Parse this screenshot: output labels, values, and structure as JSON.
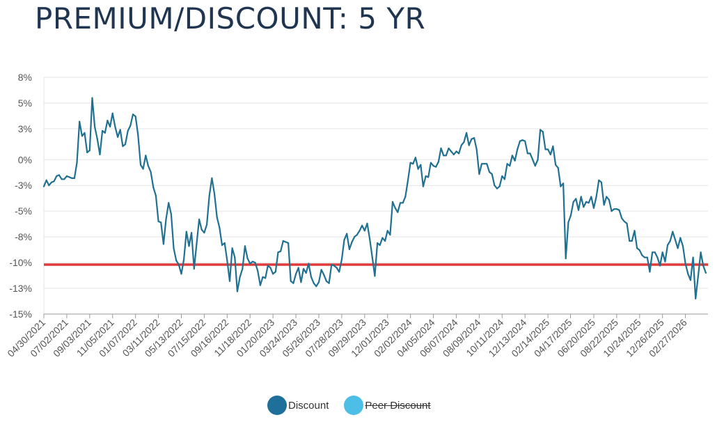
{
  "page": {
    "title": "PREMIUM/DISCOUNT: 5 YR"
  },
  "chart_data": {
    "type": "line",
    "title": "PREMIUM/DISCOUNT: 5 YR",
    "xlabel": "",
    "ylabel": "",
    "y_unit": "%",
    "ylim": [
      -15,
      8
    ],
    "y_ticks": [
      {
        "value": 8,
        "label": "8%"
      },
      {
        "value": 5.5,
        "label": "5%"
      },
      {
        "value": 3,
        "label": "3%"
      },
      {
        "value": 0,
        "label": "0%"
      },
      {
        "value": -2.5,
        "label": "-3%"
      },
      {
        "value": -5,
        "label": "-5%"
      },
      {
        "value": -7.5,
        "label": "-8%"
      },
      {
        "value": -10,
        "label": "-10%"
      },
      {
        "value": -12.5,
        "label": "-13%"
      },
      {
        "value": -15,
        "label": "-15%"
      }
    ],
    "x_range": [
      "2021-04-30",
      "2026-04-30"
    ],
    "x_tick_labels": [
      "04/30/2021",
      "07/02/2021",
      "09/03/2021",
      "11/05/2021",
      "01/07/2022",
      "03/11/2022",
      "05/13/2022",
      "07/15/2022",
      "09/16/2022",
      "11/18/2022",
      "01/20/2023",
      "03/24/2023",
      "05/26/2023",
      "07/28/2023",
      "09/29/2023",
      "12/01/2023",
      "02/02/2024",
      "04/05/2024",
      "06/07/2024",
      "08/09/2024",
      "10/11/2024",
      "12/13/2024",
      "02/14/2025",
      "04/17/2025",
      "06/20/2025",
      "08/22/2025",
      "10/24/2025",
      "12/26/2025",
      "02/27/2026"
    ],
    "grid": true,
    "legend_position": "bottom",
    "reference_line": {
      "value": -10.2,
      "color": "#e03a3a"
    },
    "series": [
      {
        "name": "Discount",
        "color": "#1f7091",
        "legend_color": "#1f6f9b",
        "visible": true,
        "points": [
          [
            "2021-04-30",
            -2.6
          ],
          [
            "2021-05-07",
            -2.0
          ],
          [
            "2021-05-14",
            -2.5
          ],
          [
            "2021-05-21",
            -2.2
          ],
          [
            "2021-05-28",
            -2.1
          ],
          [
            "2021-06-04",
            -1.6
          ],
          [
            "2021-06-11",
            -1.5
          ],
          [
            "2021-06-18",
            -1.9
          ],
          [
            "2021-06-25",
            -1.9
          ],
          [
            "2021-07-02",
            -1.6
          ],
          [
            "2021-07-09",
            -1.7
          ],
          [
            "2021-07-16",
            -1.8
          ],
          [
            "2021-07-23",
            -1.8
          ],
          [
            "2021-07-30",
            -0.3
          ],
          [
            "2021-08-06",
            3.7
          ],
          [
            "2021-08-13",
            2.3
          ],
          [
            "2021-08-20",
            2.6
          ],
          [
            "2021-08-27",
            0.7
          ],
          [
            "2021-09-03",
            0.9
          ],
          [
            "2021-09-10",
            6.0
          ],
          [
            "2021-09-17",
            3.2
          ],
          [
            "2021-09-24",
            2.0
          ],
          [
            "2021-10-01",
            0.5
          ],
          [
            "2021-10-08",
            2.8
          ],
          [
            "2021-10-15",
            2.6
          ],
          [
            "2021-10-22",
            3.8
          ],
          [
            "2021-10-29",
            3.2
          ],
          [
            "2021-11-05",
            4.5
          ],
          [
            "2021-11-12",
            3.2
          ],
          [
            "2021-11-19",
            2.2
          ],
          [
            "2021-11-26",
            2.9
          ],
          [
            "2021-12-03",
            1.3
          ],
          [
            "2021-12-10",
            1.5
          ],
          [
            "2021-12-17",
            2.8
          ],
          [
            "2021-12-24",
            3.3
          ],
          [
            "2021-12-31",
            4.4
          ],
          [
            "2022-01-07",
            4.2
          ],
          [
            "2022-01-14",
            2.4
          ],
          [
            "2022-01-21",
            -0.5
          ],
          [
            "2022-01-28",
            -0.9
          ],
          [
            "2022-02-04",
            0.4
          ],
          [
            "2022-02-11",
            -0.6
          ],
          [
            "2022-02-18",
            -1.2
          ],
          [
            "2022-02-25",
            -2.7
          ],
          [
            "2022-03-04",
            -3.5
          ],
          [
            "2022-03-11",
            -6.0
          ],
          [
            "2022-03-18",
            -6.1
          ],
          [
            "2022-03-25",
            -8.2
          ],
          [
            "2022-04-01",
            -5.8
          ],
          [
            "2022-04-08",
            -4.2
          ],
          [
            "2022-04-15",
            -5.3
          ],
          [
            "2022-04-22",
            -8.6
          ],
          [
            "2022-04-29",
            -9.8
          ],
          [
            "2022-05-06",
            -10.2
          ],
          [
            "2022-05-13",
            -11.1
          ],
          [
            "2022-05-20",
            -9.7
          ],
          [
            "2022-05-27",
            -7.0
          ],
          [
            "2022-06-03",
            -8.4
          ],
          [
            "2022-06-10",
            -7.1
          ],
          [
            "2022-06-17",
            -10.6
          ],
          [
            "2022-06-24",
            -8.2
          ],
          [
            "2022-07-01",
            -5.8
          ],
          [
            "2022-07-08",
            -6.8
          ],
          [
            "2022-07-15",
            -7.1
          ],
          [
            "2022-07-22",
            -6.3
          ],
          [
            "2022-07-29",
            -3.5
          ],
          [
            "2022-08-05",
            -1.8
          ],
          [
            "2022-08-12",
            -3.3
          ],
          [
            "2022-08-19",
            -5.6
          ],
          [
            "2022-08-26",
            -6.6
          ],
          [
            "2022-09-02",
            -8.3
          ],
          [
            "2022-09-09",
            -8.1
          ],
          [
            "2022-09-16",
            -9.8
          ],
          [
            "2022-09-23",
            -11.8
          ],
          [
            "2022-09-30",
            -8.6
          ],
          [
            "2022-10-07",
            -9.5
          ],
          [
            "2022-10-14",
            -12.8
          ],
          [
            "2022-10-21",
            -11.4
          ],
          [
            "2022-10-28",
            -10.6
          ],
          [
            "2022-11-04",
            -8.4
          ],
          [
            "2022-11-11",
            -9.6
          ],
          [
            "2022-11-18",
            -10.1
          ],
          [
            "2022-11-25",
            -9.9
          ],
          [
            "2022-12-02",
            -10.0
          ],
          [
            "2022-12-09",
            -10.8
          ],
          [
            "2022-12-16",
            -12.2
          ],
          [
            "2022-12-23",
            -11.4
          ],
          [
            "2022-12-30",
            -11.5
          ],
          [
            "2023-01-06",
            -10.3
          ],
          [
            "2023-01-13",
            -10.5
          ],
          [
            "2023-01-20",
            -11.1
          ],
          [
            "2023-01-27",
            -10.9
          ],
          [
            "2023-02-03",
            -9.0
          ],
          [
            "2023-02-10",
            -8.9
          ],
          [
            "2023-02-17",
            -7.9
          ],
          [
            "2023-02-24",
            -8.0
          ],
          [
            "2023-03-03",
            -8.1
          ],
          [
            "2023-03-10",
            -11.8
          ],
          [
            "2023-03-17",
            -12.0
          ],
          [
            "2023-03-24",
            -11.1
          ],
          [
            "2023-03-31",
            -10.5
          ],
          [
            "2023-04-07",
            -11.9
          ],
          [
            "2023-04-14",
            -10.6
          ],
          [
            "2023-04-21",
            -11.0
          ],
          [
            "2023-04-28",
            -10.1
          ],
          [
            "2023-05-05",
            -11.4
          ],
          [
            "2023-05-12",
            -12.0
          ],
          [
            "2023-05-19",
            -12.3
          ],
          [
            "2023-05-26",
            -11.9
          ],
          [
            "2023-06-02",
            -10.7
          ],
          [
            "2023-06-09",
            -11.2
          ],
          [
            "2023-06-16",
            -11.8
          ],
          [
            "2023-06-23",
            -12.0
          ],
          [
            "2023-06-30",
            -10.2
          ],
          [
            "2023-07-07",
            -10.3
          ],
          [
            "2023-07-14",
            -10.5
          ],
          [
            "2023-07-21",
            -10.9
          ],
          [
            "2023-07-28",
            -9.7
          ],
          [
            "2023-08-04",
            -7.8
          ],
          [
            "2023-08-11",
            -7.2
          ],
          [
            "2023-08-18",
            -8.7
          ],
          [
            "2023-08-25",
            -8.0
          ],
          [
            "2023-09-01",
            -7.5
          ],
          [
            "2023-09-08",
            -7.3
          ],
          [
            "2023-09-15",
            -6.9
          ],
          [
            "2023-09-22",
            -6.4
          ],
          [
            "2023-09-29",
            -6.9
          ],
          [
            "2023-10-06",
            -6.2
          ],
          [
            "2023-10-13",
            -7.7
          ],
          [
            "2023-10-20",
            -9.5
          ],
          [
            "2023-10-27",
            -11.3
          ],
          [
            "2023-11-03",
            -8.1
          ],
          [
            "2023-11-10",
            -8.3
          ],
          [
            "2023-11-17",
            -7.6
          ],
          [
            "2023-11-24",
            -7.9
          ],
          [
            "2023-12-01",
            -6.9
          ],
          [
            "2023-12-08",
            -7.3
          ],
          [
            "2023-12-15",
            -4.1
          ],
          [
            "2023-12-22",
            -4.7
          ],
          [
            "2023-12-29",
            -5.1
          ],
          [
            "2024-01-05",
            -4.2
          ],
          [
            "2024-01-12",
            -4.2
          ],
          [
            "2024-01-19",
            -3.6
          ],
          [
            "2024-01-26",
            -2.0
          ],
          [
            "2024-02-02",
            -0.3
          ],
          [
            "2024-02-09",
            -0.4
          ],
          [
            "2024-02-16",
            0.2
          ],
          [
            "2024-02-23",
            -0.9
          ],
          [
            "2024-03-01",
            -0.5
          ],
          [
            "2024-03-08",
            -2.6
          ],
          [
            "2024-03-15",
            -1.6
          ],
          [
            "2024-03-22",
            -1.7
          ],
          [
            "2024-03-29",
            -0.3
          ],
          [
            "2024-04-05",
            -0.6
          ],
          [
            "2024-04-12",
            -0.7
          ],
          [
            "2024-04-19",
            -0.2
          ],
          [
            "2024-04-26",
            1.1
          ],
          [
            "2024-05-03",
            0.4
          ],
          [
            "2024-05-10",
            0.4
          ],
          [
            "2024-05-17",
            1.1
          ],
          [
            "2024-05-24",
            0.8
          ],
          [
            "2024-05-31",
            0.5
          ],
          [
            "2024-06-07",
            0.8
          ],
          [
            "2024-06-14",
            0.6
          ],
          [
            "2024-06-21",
            1.4
          ],
          [
            "2024-06-28",
            1.7
          ],
          [
            "2024-07-05",
            2.6
          ],
          [
            "2024-07-12",
            1.4
          ],
          [
            "2024-07-19",
            2.0
          ],
          [
            "2024-07-26",
            2.1
          ],
          [
            "2024-08-02",
            1.0
          ],
          [
            "2024-08-09",
            -1.4
          ],
          [
            "2024-08-16",
            -0.4
          ],
          [
            "2024-08-23",
            -0.4
          ],
          [
            "2024-08-30",
            -0.4
          ],
          [
            "2024-09-06",
            -1.2
          ],
          [
            "2024-09-13",
            -1.4
          ],
          [
            "2024-09-20",
            -2.5
          ],
          [
            "2024-09-27",
            -2.8
          ],
          [
            "2024-10-04",
            -2.6
          ],
          [
            "2024-10-11",
            -1.6
          ],
          [
            "2024-10-18",
            -1.9
          ],
          [
            "2024-10-25",
            -0.4
          ],
          [
            "2024-11-01",
            -0.6
          ],
          [
            "2024-11-08",
            0.4
          ],
          [
            "2024-11-15",
            -0.1
          ],
          [
            "2024-11-22",
            1.0
          ],
          [
            "2024-11-29",
            1.8
          ],
          [
            "2024-12-06",
            1.9
          ],
          [
            "2024-12-13",
            1.8
          ],
          [
            "2024-12-20",
            0.6
          ],
          [
            "2024-12-27",
            0.6
          ],
          [
            "2025-01-03",
            0.0
          ],
          [
            "2025-01-10",
            -0.6
          ],
          [
            "2025-01-17",
            0.0
          ],
          [
            "2025-01-24",
            2.9
          ],
          [
            "2025-01-31",
            2.7
          ],
          [
            "2025-02-07",
            1.0
          ],
          [
            "2025-02-14",
            1.0
          ],
          [
            "2025-02-21",
            0.5
          ],
          [
            "2025-02-28",
            1.3
          ],
          [
            "2025-03-07",
            -0.5
          ],
          [
            "2025-03-14",
            -0.8
          ],
          [
            "2025-03-21",
            -2.6
          ],
          [
            "2025-03-28",
            -2.3
          ],
          [
            "2025-04-04",
            -9.6
          ],
          [
            "2025-04-11",
            -6.1
          ],
          [
            "2025-04-18",
            -5.4
          ],
          [
            "2025-04-25",
            -4.1
          ],
          [
            "2025-05-02",
            -3.8
          ],
          [
            "2025-05-09",
            -4.9
          ],
          [
            "2025-05-16",
            -3.6
          ],
          [
            "2025-05-23",
            -4.6
          ],
          [
            "2025-05-30",
            -4.1
          ],
          [
            "2025-06-06",
            -4.2
          ],
          [
            "2025-06-13",
            -3.6
          ],
          [
            "2025-06-20",
            -4.7
          ],
          [
            "2025-06-27",
            -3.6
          ],
          [
            "2025-07-04",
            -2.0
          ],
          [
            "2025-07-11",
            -2.2
          ],
          [
            "2025-07-18",
            -4.4
          ],
          [
            "2025-07-25",
            -3.6
          ],
          [
            "2025-08-01",
            -3.9
          ],
          [
            "2025-08-08",
            -5.0
          ],
          [
            "2025-08-15",
            -4.8
          ],
          [
            "2025-08-22",
            -4.8
          ],
          [
            "2025-08-29",
            -4.9
          ],
          [
            "2025-09-05",
            -5.7
          ],
          [
            "2025-09-12",
            -6.0
          ],
          [
            "2025-09-19",
            -6.2
          ],
          [
            "2025-09-26",
            -7.9
          ],
          [
            "2025-10-03",
            -7.9
          ],
          [
            "2025-10-10",
            -6.9
          ],
          [
            "2025-10-17",
            -8.6
          ],
          [
            "2025-10-24",
            -8.8
          ],
          [
            "2025-10-31",
            -9.3
          ],
          [
            "2025-11-07",
            -9.5
          ],
          [
            "2025-11-14",
            -9.5
          ],
          [
            "2025-11-21",
            -10.9
          ],
          [
            "2025-11-28",
            -9.0
          ],
          [
            "2025-12-05",
            -9.0
          ],
          [
            "2025-12-12",
            -9.5
          ],
          [
            "2025-12-19",
            -10.3
          ],
          [
            "2025-12-26",
            -9.0
          ],
          [
            "2026-01-02",
            -9.9
          ],
          [
            "2026-01-09",
            -8.3
          ],
          [
            "2026-01-16",
            -7.9
          ],
          [
            "2026-01-23",
            -7.0
          ],
          [
            "2026-01-30",
            -7.8
          ],
          [
            "2026-02-06",
            -8.6
          ],
          [
            "2026-02-13",
            -7.6
          ],
          [
            "2026-02-20",
            -8.4
          ],
          [
            "2026-02-27",
            -10.1
          ],
          [
            "2026-03-06",
            -11.1
          ],
          [
            "2026-03-13",
            -11.7
          ],
          [
            "2026-03-20",
            -9.5
          ],
          [
            "2026-03-27",
            -13.5
          ],
          [
            "2026-04-03",
            -11.3
          ],
          [
            "2026-04-10",
            -9.0
          ],
          [
            "2026-04-17",
            -10.3
          ],
          [
            "2026-04-24",
            -11.0
          ]
        ]
      },
      {
        "name": "Peer Discount",
        "color": "#4dbfe6",
        "legend_color": "#4dbfe6",
        "visible": false,
        "points": []
      }
    ]
  }
}
